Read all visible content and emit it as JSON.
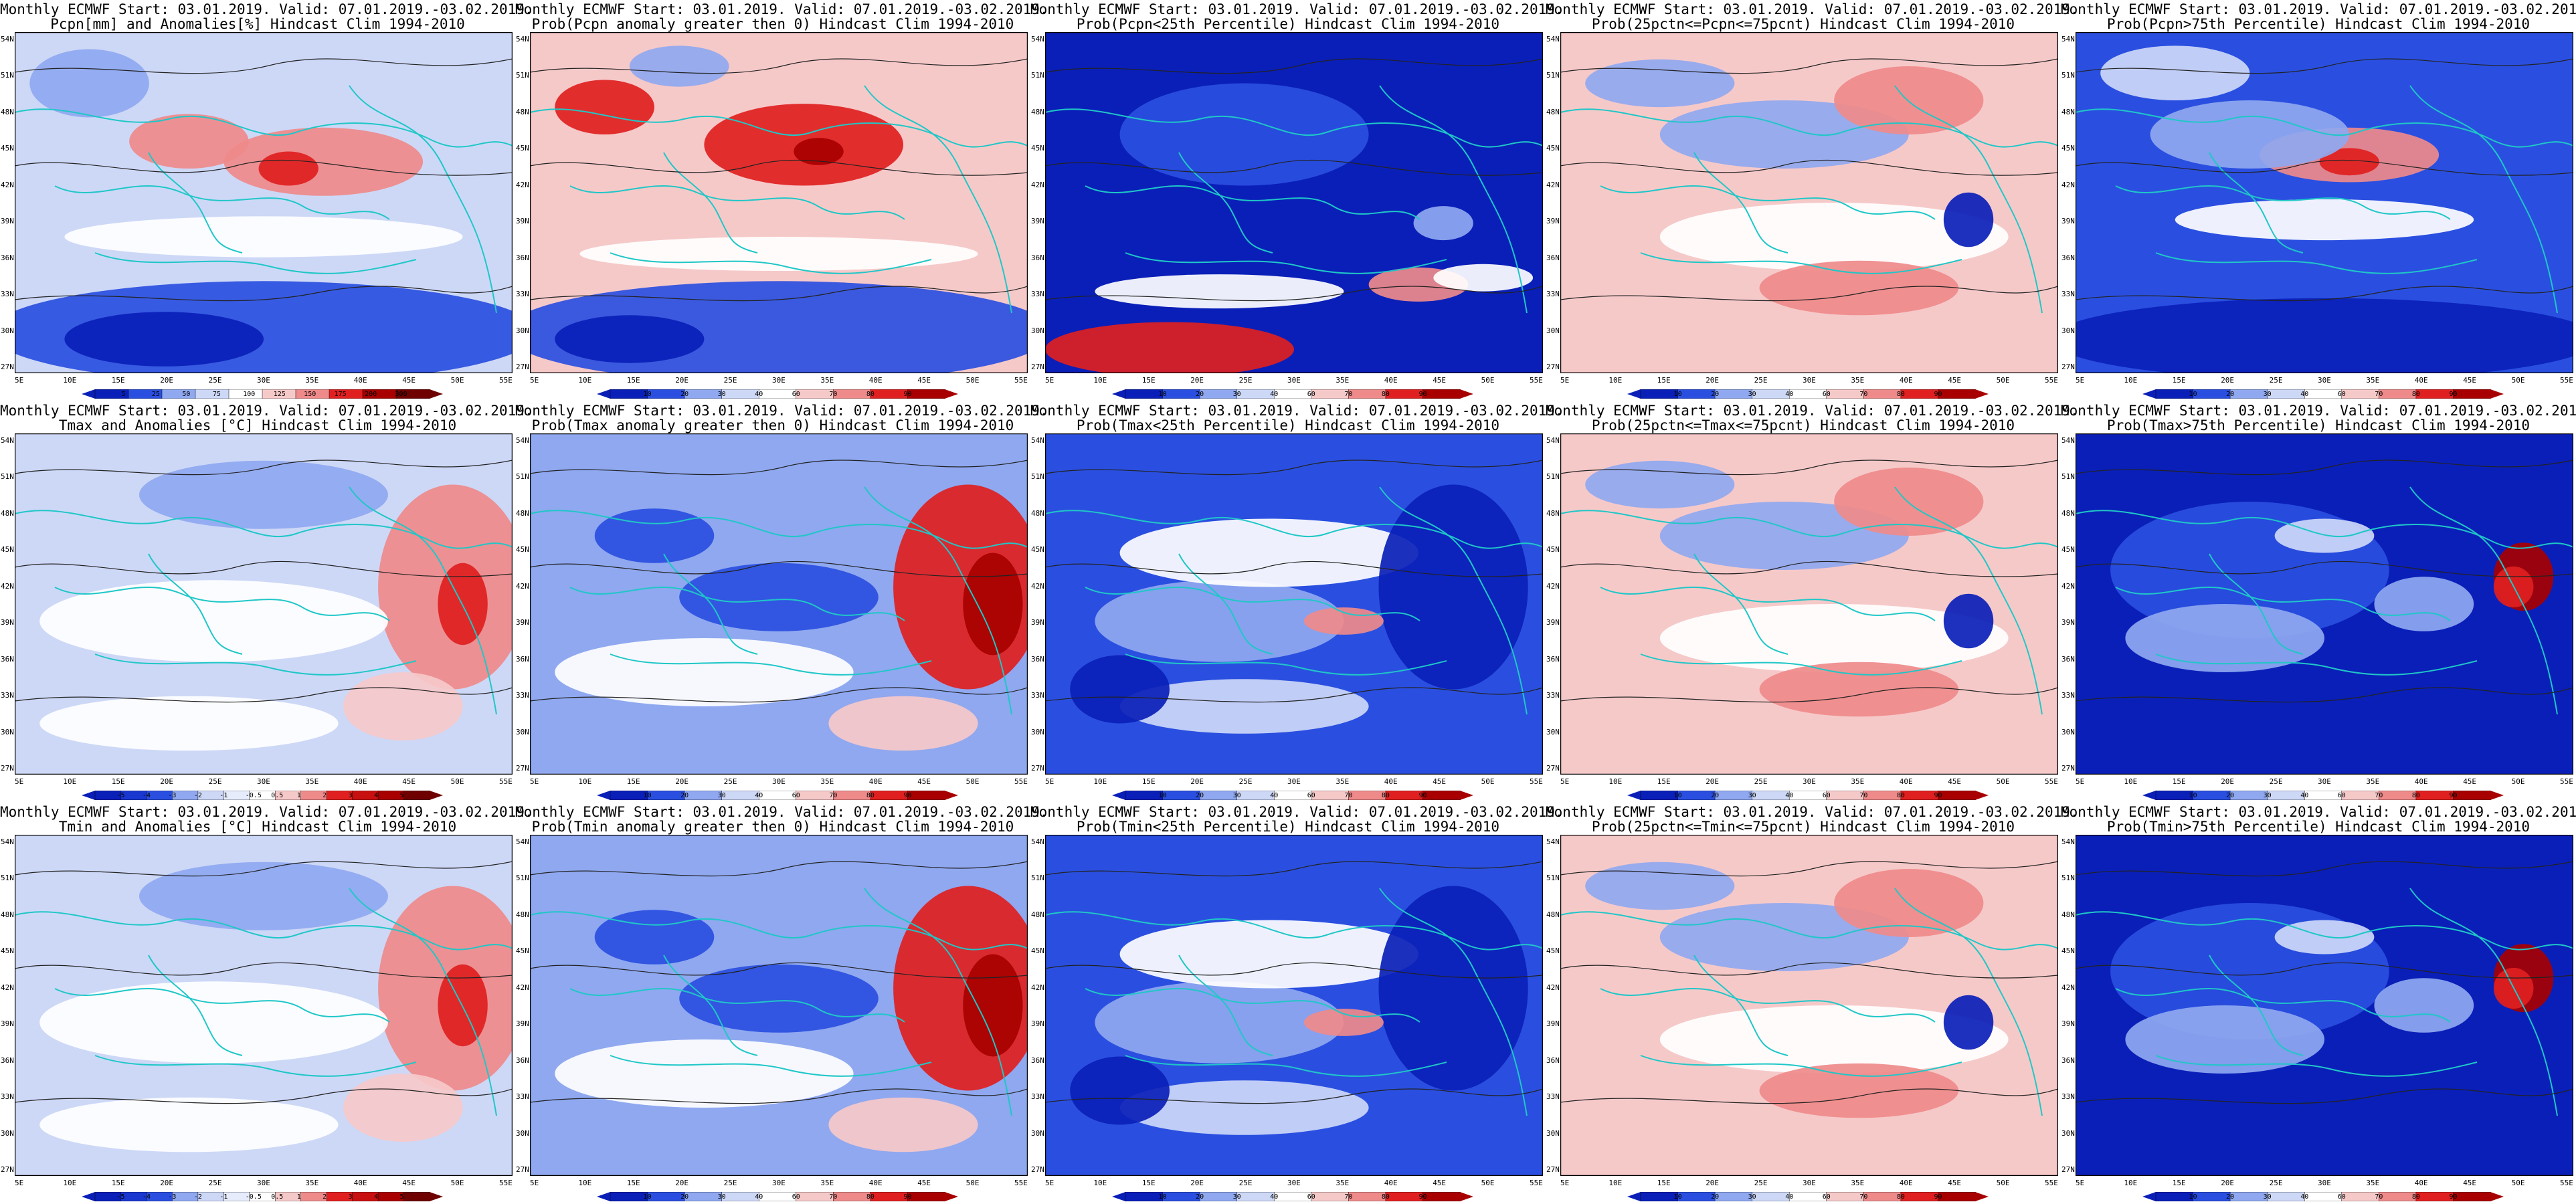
{
  "header": {
    "title_line": "Monthly ECMWF Start: 03.01.2019. Valid: 07.01.2019.-03.02.2019."
  },
  "axes": {
    "lat_labels": [
      "54N",
      "51N",
      "48N",
      "45N",
      "42N",
      "39N",
      "36N",
      "33N",
      "30N",
      "27N"
    ],
    "lon_labels": [
      "5E",
      "10E",
      "15E",
      "20E",
      "25E",
      "30E",
      "35E",
      "40E",
      "45E",
      "50E",
      "55E"
    ]
  },
  "colors": {
    "deep_blue": "#0a1fb8",
    "blue": "#2a4fe0",
    "light_blue": "#8fa8f0",
    "pale_blue": "#cdd8f7",
    "white": "#ffffff",
    "pale_red": "#f6c9c9",
    "light_red": "#ef8a8a",
    "red": "#e02020",
    "dark_red": "#a80000",
    "coast": "#1fc7c7",
    "contour": "#222222"
  },
  "colorbars": {
    "pcpn": [
      "5",
      "25",
      "50",
      "75",
      "100",
      "125",
      "150",
      "175",
      "200",
      "300"
    ],
    "prob": [
      "10",
      "20",
      "30",
      "40",
      "60",
      "70",
      "80",
      "90"
    ],
    "temp": [
      "-5",
      "-4",
      "-3",
      "-2",
      "-1",
      "-0.5",
      "0.5",
      "1",
      "2",
      "3",
      "4",
      "5"
    ]
  },
  "panels": [
    {
      "id": "pcpn-anom",
      "title": "Pcpn[mm] and Anomalies[%] Hindcast Clim 1994-2010",
      "cbar": "pcpn",
      "pattern": "pcpn_anom"
    },
    {
      "id": "pcpn-prob-pos",
      "title": "Prob(Pcpn anomaly greater then 0) Hindcast Clim 1994-2010",
      "cbar": "prob",
      "pattern": "pcpn_pos"
    },
    {
      "id": "pcpn-prob-lt25",
      "title": "Prob(Pcpn<25th Percentile) Hindcast Clim 1994-2010",
      "cbar": "prob",
      "pattern": "pcpn_lt25"
    },
    {
      "id": "pcpn-prob-mid",
      "title": "Prob(25pctn<=Pcpn<=75pcnt) Hindcast Clim 1994-2010",
      "cbar": "prob",
      "pattern": "mid"
    },
    {
      "id": "pcpn-prob-gt75",
      "title": "Prob(Pcpn>75th Percentile) Hindcast Clim 1994-2010",
      "cbar": "prob",
      "pattern": "pcpn_gt75"
    },
    {
      "id": "tmax-anom",
      "title": "Tmax and Anomalies [°C] Hindcast Clim 1994-2010",
      "cbar": "temp",
      "pattern": "t_anom"
    },
    {
      "id": "tmax-prob-pos",
      "title": "Prob(Tmax anomaly greater then 0) Hindcast Clim 1994-2010",
      "cbar": "prob",
      "pattern": "t_pos"
    },
    {
      "id": "tmax-prob-lt25",
      "title": "Prob(Tmax<25th Percentile) Hindcast Clim 1994-2010",
      "cbar": "prob",
      "pattern": "t_lt25"
    },
    {
      "id": "tmax-prob-mid",
      "title": "Prob(25pctn<=Tmax<=75pcnt) Hindcast Clim 1994-2010",
      "cbar": "prob",
      "pattern": "mid"
    },
    {
      "id": "tmax-prob-gt75",
      "title": "Prob(Tmax>75th Percentile) Hindcast Clim 1994-2010",
      "cbar": "prob",
      "pattern": "t_gt75"
    },
    {
      "id": "tmin-anom",
      "title": "Tmin and Anomalies [°C] Hindcast Clim 1994-2010",
      "cbar": "temp",
      "pattern": "t_anom"
    },
    {
      "id": "tmin-prob-pos",
      "title": "Prob(Tmin anomaly greater then 0) Hindcast Clim 1994-2010",
      "cbar": "prob",
      "pattern": "t_pos"
    },
    {
      "id": "tmin-prob-lt25",
      "title": "Prob(Tmin<25th Percentile) Hindcast Clim 1994-2010",
      "cbar": "prob",
      "pattern": "t_lt25"
    },
    {
      "id": "tmin-prob-mid",
      "title": "Prob(25pctn<=Tmin<=75pcnt) Hindcast Clim 1994-2010",
      "cbar": "prob",
      "pattern": "mid"
    },
    {
      "id": "tmin-prob-gt75",
      "title": "Prob(Tmin>75th Percentile) Hindcast Clim 1994-2010",
      "cbar": "prob",
      "pattern": "t_gt75"
    }
  ]
}
